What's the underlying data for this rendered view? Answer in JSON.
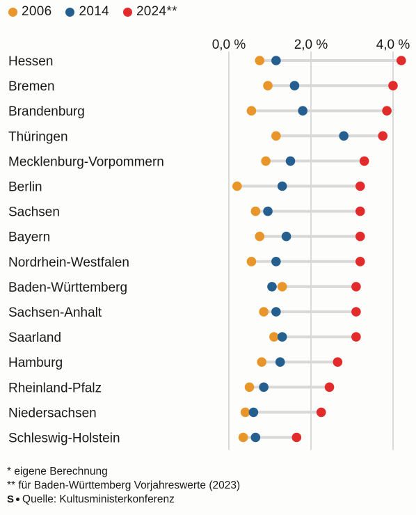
{
  "chart_data": {
    "type": "scatter",
    "orientation": "horizontal-dot-plot",
    "title": "",
    "xlabel": "",
    "ylabel": "",
    "xlim": [
      -0.2,
      4.2
    ],
    "x_ticks": [
      0,
      2,
      4
    ],
    "x_tick_labels": [
      "0,0 %",
      "2,0 %",
      "4,0 %"
    ],
    "grid": "vertical-gridlines-at-ticks",
    "legend_position": "top-left",
    "categories": [
      "Hessen",
      "Bremen",
      "Brandenburg",
      "Thüringen",
      "Mecklenburg-Vorpommern",
      "Berlin",
      "Sachsen",
      "Bayern",
      "Nordrhein-Westfalen",
      "Baden-Württemberg",
      "Sachsen-Anhalt",
      "Saarland",
      "Hamburg",
      "Rheinland-Pfalz",
      "Niedersachsen",
      "Schleswig-Holstein"
    ],
    "series": [
      {
        "name": "2006",
        "color": "#e8962a",
        "values": [
          0.75,
          0.95,
          0.55,
          1.15,
          0.9,
          0.2,
          0.65,
          0.75,
          0.55,
          1.3,
          0.85,
          1.1,
          0.8,
          0.5,
          0.4,
          0.35
        ]
      },
      {
        "name": "2014",
        "color": "#245f8f",
        "values": [
          1.15,
          1.6,
          1.8,
          2.8,
          1.5,
          1.3,
          0.95,
          1.4,
          1.15,
          1.05,
          1.15,
          1.3,
          1.25,
          0.85,
          0.6,
          0.65
        ]
      },
      {
        "name": "2024**",
        "color": "#e22b2b",
        "values": [
          4.2,
          4.0,
          3.85,
          3.75,
          3.3,
          3.2,
          3.2,
          3.2,
          3.2,
          3.1,
          3.1,
          3.1,
          2.65,
          2.45,
          2.25,
          1.65
        ]
      }
    ]
  },
  "footnotes": {
    "note1": "* eigene Berechnung",
    "note2": "** für Baden-Württemberg Vorjahreswerte (2023)",
    "source_logo": "S",
    "source": "Quelle: Kultusministerkonferenz"
  },
  "colors": {
    "c2006": "#e8962a",
    "c2014": "#245f8f",
    "c2024": "#e22b2b",
    "gridline": "#c4c4c4",
    "rowline": "#d9d9d9"
  }
}
